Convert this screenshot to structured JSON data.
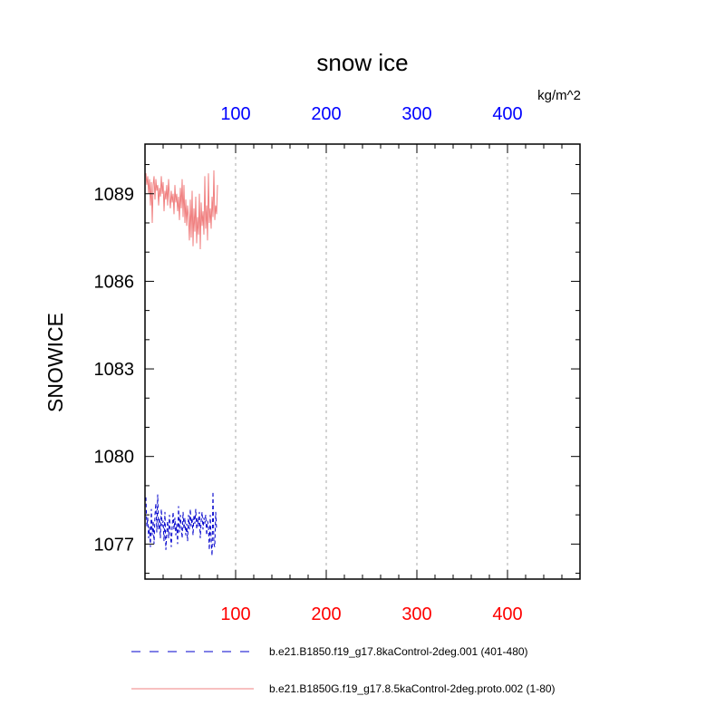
{
  "chart_data": {
    "type": "line",
    "title": "snow ice",
    "units": "kg/m^2",
    "ylabel": "SNOWICE",
    "xlim": [
      0,
      480
    ],
    "ylim": [
      1075.8,
      1090.7
    ],
    "yticks": [
      1077,
      1080,
      1083,
      1086,
      1089
    ],
    "xticks_top": [
      100,
      200,
      300,
      400
    ],
    "xticks_bottom": [
      100,
      200,
      300,
      400
    ],
    "top_tick_color": "#0000ff",
    "bottom_tick_color": "#ff0000",
    "grid": "vertical-dashed",
    "series": [
      {
        "name": "b.e21.B1850.f19_g17.8kaControl-2deg.001 (401-480)",
        "color": "#0000cc",
        "dash": "dashed",
        "x": [
          1,
          2,
          3,
          4,
          5,
          6,
          7,
          8,
          9,
          10,
          11,
          12,
          13,
          14,
          15,
          16,
          17,
          18,
          19,
          20,
          21,
          22,
          23,
          24,
          25,
          26,
          27,
          28,
          29,
          30,
          31,
          32,
          33,
          34,
          35,
          36,
          37,
          38,
          39,
          40,
          41,
          42,
          43,
          44,
          45,
          46,
          47,
          48,
          49,
          50,
          51,
          52,
          53,
          54,
          55,
          56,
          57,
          58,
          59,
          60,
          61,
          62,
          63,
          64,
          65,
          66,
          67,
          68,
          69,
          70,
          71,
          72,
          73,
          74,
          75,
          76,
          77,
          78,
          79
        ],
        "y": [
          1078.6,
          1077.6,
          1077.9,
          1077.2,
          1077.6,
          1076.9,
          1078.2,
          1077.3,
          1077.8,
          1077.0,
          1078.0,
          1078.4,
          1077.4,
          1078.7,
          1077.5,
          1077.9,
          1077.2,
          1078.2,
          1077.6,
          1077.8,
          1077.1,
          1078.1,
          1076.8,
          1077.4,
          1077.8,
          1077.2,
          1078.0,
          1077.4,
          1076.9,
          1077.6,
          1078.1,
          1077.5,
          1077.9,
          1077.3,
          1077.7,
          1077.0,
          1078.3,
          1077.4,
          1078.0,
          1077.6,
          1077.2,
          1078.1,
          1077.5,
          1077.9,
          1077.3,
          1077.7,
          1077.1,
          1078.0,
          1077.5,
          1078.2,
          1077.6,
          1077.9,
          1077.3,
          1078.0,
          1077.7,
          1078.2,
          1077.5,
          1077.9,
          1077.6,
          1078.1,
          1077.2,
          1077.8,
          1078.1,
          1077.5,
          1077.9,
          1077.7,
          1078.0,
          1077.3,
          1077.8,
          1077.6,
          1076.8,
          1078.0,
          1077.1,
          1076.6,
          1078.8,
          1077.0,
          1076.9,
          1078.1,
          1077.5
        ]
      },
      {
        "name": "b.e21.B1850G.f19_g17.8.5kaControl-2deg.proto.002 (1-80)",
        "color": "#f08080",
        "dash": "solid",
        "x": [
          1,
          2,
          3,
          4,
          5,
          6,
          7,
          8,
          9,
          10,
          11,
          12,
          13,
          14,
          15,
          16,
          17,
          18,
          19,
          20,
          21,
          22,
          23,
          24,
          25,
          26,
          27,
          28,
          29,
          30,
          31,
          32,
          33,
          34,
          35,
          36,
          37,
          38,
          39,
          40,
          41,
          42,
          43,
          44,
          45,
          46,
          47,
          48,
          49,
          50,
          51,
          52,
          53,
          54,
          55,
          56,
          57,
          58,
          59,
          60,
          61,
          62,
          63,
          64,
          65,
          66,
          67,
          68,
          69,
          70,
          71,
          72,
          73,
          74,
          75,
          76,
          77,
          78,
          79,
          80
        ],
        "y": [
          1089.7,
          1089.3,
          1089.6,
          1089.0,
          1089.5,
          1088.6,
          1089.4,
          1088.0,
          1089.3,
          1089.6,
          1088.8,
          1089.5,
          1089.1,
          1089.3,
          1088.6,
          1089.2,
          1088.9,
          1089.6,
          1089.0,
          1089.4,
          1088.4,
          1089.1,
          1088.8,
          1089.3,
          1088.6,
          1089.5,
          1088.9,
          1088.5,
          1089.1,
          1088.7,
          1089.0,
          1088.3,
          1089.3,
          1088.7,
          1089.0,
          1088.4,
          1088.9,
          1088.1,
          1089.2,
          1088.5,
          1089.5,
          1088.2,
          1089.3,
          1088.0,
          1088.8,
          1087.9,
          1088.6,
          1088.2,
          1087.4,
          1088.8,
          1087.5,
          1089.1,
          1087.2,
          1088.5,
          1087.7,
          1088.9,
          1087.3,
          1088.2,
          1087.6,
          1089.0,
          1087.1,
          1088.7,
          1087.9,
          1088.4,
          1087.6,
          1089.6,
          1087.8,
          1088.6,
          1087.4,
          1089.7,
          1088.0,
          1088.5,
          1087.8,
          1088.9,
          1088.2,
          1089.8,
          1088.1,
          1088.6,
          1088.3,
          1089.3
        ]
      }
    ]
  }
}
